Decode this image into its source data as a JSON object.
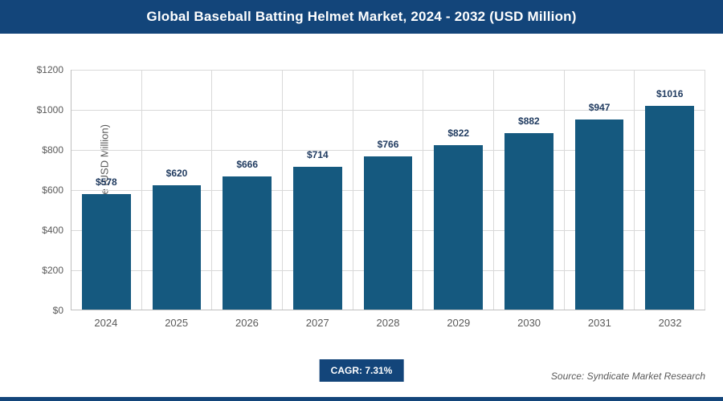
{
  "header": {
    "title": "Global Baseball Batting Helmet Market, 2024 - 2032 (USD Million)"
  },
  "chart_data": {
    "type": "bar",
    "title": "Global Baseball Batting Helmet Market, 2024 - 2032 (USD Million)",
    "categories": [
      "2024",
      "2025",
      "2026",
      "2027",
      "2028",
      "2029",
      "2030",
      "2031",
      "2032"
    ],
    "values": [
      578,
      620,
      666,
      714,
      766,
      822,
      882,
      947,
      1016
    ],
    "data_labels": [
      "$578",
      "$620",
      "$666",
      "$714",
      "$766",
      "$822",
      "$882",
      "$947",
      "$1016"
    ],
    "xlabel": "",
    "ylabel": "Market Size (USD Million)",
    "ylim": [
      0,
      1200
    ],
    "ytick_step": 200,
    "ytick_prefix": "$",
    "grid": true,
    "legend": "none",
    "bar_color": "#15597f"
  },
  "footer": {
    "cagr_label": "CAGR: 7.31%",
    "source": "Source: Syndicate Market Research"
  },
  "colors": {
    "header_bg": "#13457a",
    "bar": "#15597f",
    "gridline": "#d9d9d9",
    "axis_line": "#bfbfbf",
    "tick_text": "#595959",
    "data_label_text": "#1f3a5f",
    "cagr_bg": "#13457a",
    "bottom_strip": "#13457a"
  }
}
